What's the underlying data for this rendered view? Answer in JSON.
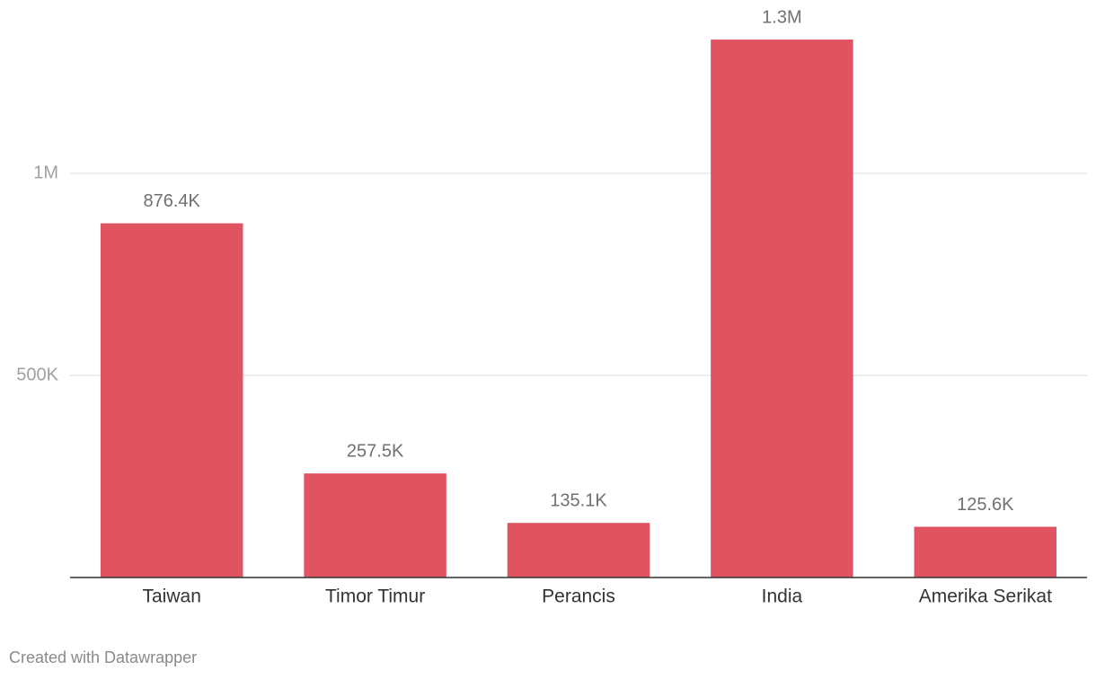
{
  "chart_data": {
    "type": "bar",
    "categories": [
      "Taiwan",
      "Timor Timur",
      "Perancis",
      "India",
      "Amerika Serikat"
    ],
    "values": [
      876400,
      257500,
      135100,
      1331000,
      125600
    ],
    "value_labels": [
      "876.4K",
      "257.5K",
      "135.1K",
      "1.3M",
      "125.6K"
    ],
    "color": "#e05461",
    "ylim": [
      0,
      1400000
    ],
    "yticks": [
      {
        "value": 500000,
        "label": "500K"
      },
      {
        "value": 1000000,
        "label": "1M"
      }
    ],
    "grid": true,
    "credit": "Created with Datawrapper"
  }
}
